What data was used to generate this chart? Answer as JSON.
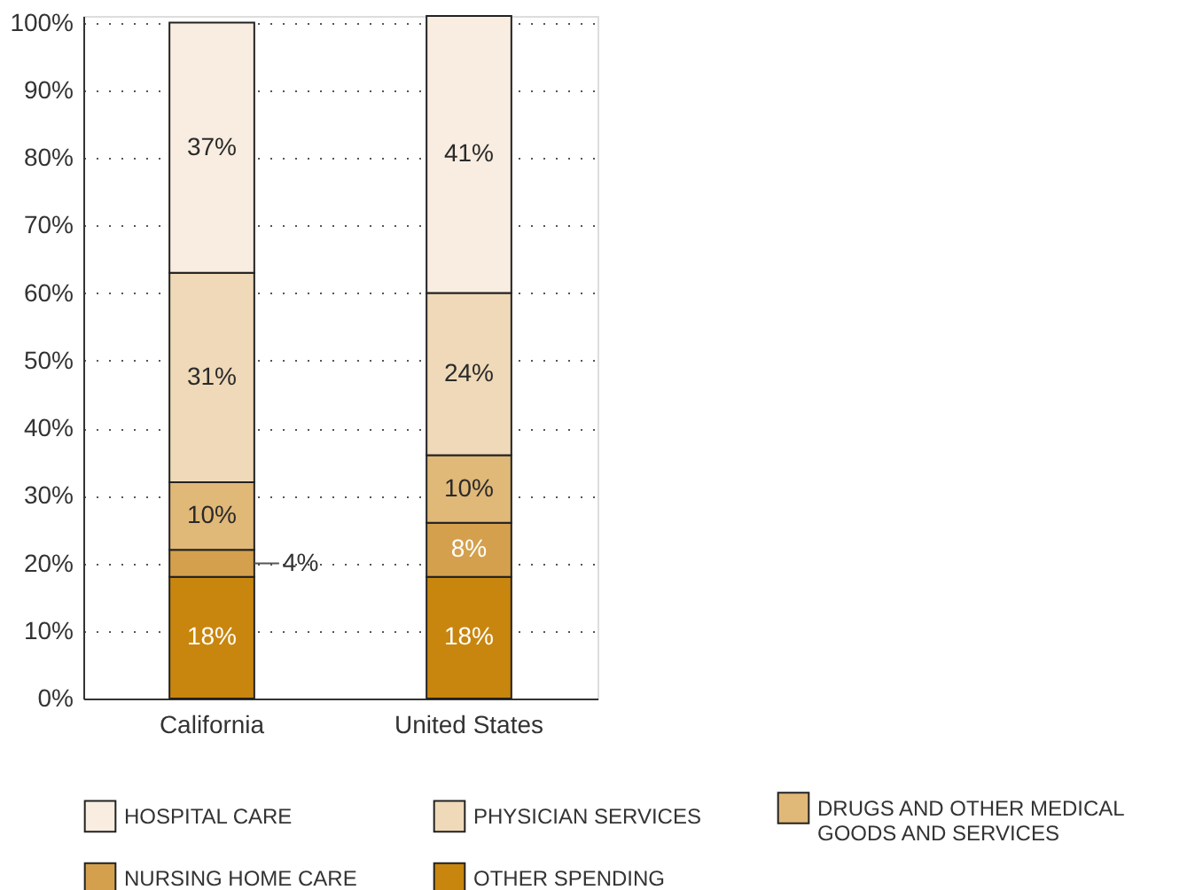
{
  "chart_data": {
    "type": "bar",
    "stacked": true,
    "categories": [
      "California",
      "United States"
    ],
    "series": [
      {
        "name": "OTHER SPENDING",
        "color": "#c8860e",
        "values": [
          18,
          18
        ],
        "value_labels": [
          "18%",
          "18%"
        ]
      },
      {
        "name": "NURSING HOME CARE",
        "color": "#d4a04e",
        "values": [
          4,
          8
        ],
        "value_labels": [
          "4%",
          "8%"
        ]
      },
      {
        "name": "DRUGS AND OTHER MEDICAL GOODS AND SERVICES",
        "color": "#e0b878",
        "values": [
          10,
          10
        ],
        "value_labels": [
          "10%",
          "10%"
        ]
      },
      {
        "name": "PHYSICIAN SERVICES",
        "color": "#efd9b8",
        "values": [
          31,
          24
        ],
        "value_labels": [
          "31%",
          "24%"
        ]
      },
      {
        "name": "HOSPITAL CARE",
        "color": "#f8ede0",
        "values": [
          37,
          41
        ],
        "value_labels": [
          "37%",
          "41%"
        ]
      }
    ],
    "ylim": [
      0,
      101
    ],
    "yticks": [
      {
        "value": 0,
        "label": "0%"
      },
      {
        "value": 10,
        "label": "10%"
      },
      {
        "value": 20,
        "label": "20%"
      },
      {
        "value": 30,
        "label": "30%"
      },
      {
        "value": 40,
        "label": "40%"
      },
      {
        "value": 50,
        "label": "50%"
      },
      {
        "value": 60,
        "label": "60%"
      },
      {
        "value": 70,
        "label": "70%"
      },
      {
        "value": 80,
        "label": "80%"
      },
      {
        "value": 90,
        "label": "90%"
      },
      {
        "value": 100,
        "label": "100%"
      }
    ],
    "grid": "y",
    "legend": "bottom"
  }
}
